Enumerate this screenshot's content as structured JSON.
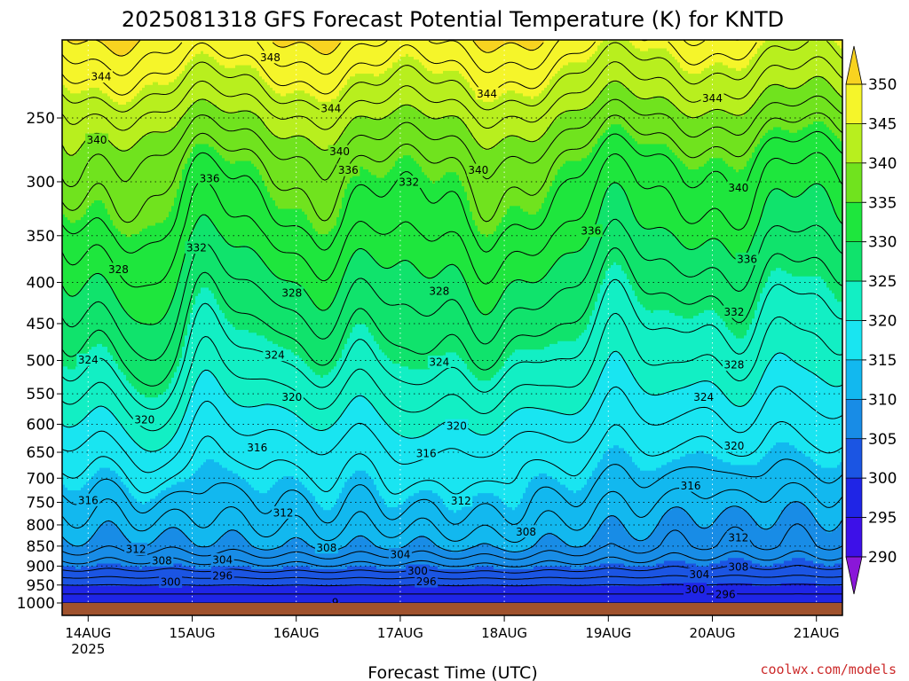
{
  "chart_data": {
    "type": "heatmap",
    "title": "2025081318 GFS Forecast Potential Temperature (K) for KNTD",
    "xlabel": "Forecast Time (UTC)",
    "ylabel": "",
    "credit": "coolwx.com/models",
    "x_ticks": [
      {
        "label": "14AUG",
        "sub": "2025",
        "hours": 6
      },
      {
        "label": "15AUG",
        "sub": "",
        "hours": 30
      },
      {
        "label": "16AUG",
        "sub": "",
        "hours": 54
      },
      {
        "label": "17AUG",
        "sub": "",
        "hours": 78
      },
      {
        "label": "18AUG",
        "sub": "",
        "hours": 102
      },
      {
        "label": "19AUG",
        "sub": "",
        "hours": 126
      },
      {
        "label": "20AUG",
        "sub": "",
        "hours": 150
      },
      {
        "label": "21AUG",
        "sub": "",
        "hours": 174
      }
    ],
    "xlim_hours": [
      0,
      180
    ],
    "y_ticks": [
      250,
      300,
      350,
      400,
      450,
      500,
      550,
      600,
      650,
      700,
      750,
      800,
      850,
      900,
      950,
      1000
    ],
    "ylim_hPa": [
      1000,
      200
    ],
    "colorbar": {
      "levels": [
        290,
        295,
        300,
        305,
        310,
        315,
        320,
        325,
        330,
        335,
        340,
        345,
        350
      ],
      "labels": [
        "350",
        "345",
        "340",
        "335",
        "330",
        "325",
        "320",
        "315",
        "310",
        "305",
        "300",
        "295",
        "290"
      ],
      "colors": [
        "#8a17d8",
        "#3d10e8",
        "#1f25e6",
        "#1b55e3",
        "#188ce6",
        "#12b8ef",
        "#19e5f1",
        "#12efc4",
        "#10e36c",
        "#1ee63d",
        "#70e31e",
        "#b8ef1e",
        "#f5f52a",
        "#f8d320"
      ]
    },
    "contour_labels": [
      {
        "text": "348",
        "h": 48,
        "p": 210
      },
      {
        "text": "344",
        "h": 9,
        "p": 222
      },
      {
        "text": "344",
        "h": 62,
        "p": 243
      },
      {
        "text": "344",
        "h": 98,
        "p": 233
      },
      {
        "text": "344",
        "h": 150,
        "p": 236
      },
      {
        "text": "340",
        "h": 8,
        "p": 266
      },
      {
        "text": "340",
        "h": 64,
        "p": 275
      },
      {
        "text": "340",
        "h": 96,
        "p": 290
      },
      {
        "text": "340",
        "h": 156,
        "p": 305
      },
      {
        "text": "336",
        "h": 34,
        "p": 297
      },
      {
        "text": "336",
        "h": 66,
        "p": 290
      },
      {
        "text": "336",
        "h": 122,
        "p": 345
      },
      {
        "text": "336",
        "h": 158,
        "p": 374
      },
      {
        "text": "332",
        "h": 31,
        "p": 362
      },
      {
        "text": "332",
        "h": 80,
        "p": 300
      },
      {
        "text": "332",
        "h": 155,
        "p": 435
      },
      {
        "text": "328",
        "h": 13,
        "p": 385
      },
      {
        "text": "328",
        "h": 53,
        "p": 412
      },
      {
        "text": "328",
        "h": 87,
        "p": 410
      },
      {
        "text": "328",
        "h": 155,
        "p": 506
      },
      {
        "text": "324",
        "h": 6,
        "p": 499
      },
      {
        "text": "324",
        "h": 49,
        "p": 492
      },
      {
        "text": "324",
        "h": 87,
        "p": 502
      },
      {
        "text": "324",
        "h": 148,
        "p": 555
      },
      {
        "text": "320",
        "h": 19,
        "p": 592
      },
      {
        "text": "320",
        "h": 53,
        "p": 555
      },
      {
        "text": "320",
        "h": 91,
        "p": 602
      },
      {
        "text": "320",
        "h": 155,
        "p": 638
      },
      {
        "text": "316",
        "h": 6,
        "p": 745
      },
      {
        "text": "316",
        "h": 45,
        "p": 641
      },
      {
        "text": "316",
        "h": 84,
        "p": 652
      },
      {
        "text": "316",
        "h": 145,
        "p": 715
      },
      {
        "text": "312",
        "h": 17,
        "p": 857
      },
      {
        "text": "312",
        "h": 51,
        "p": 772
      },
      {
        "text": "312",
        "h": 92,
        "p": 746
      },
      {
        "text": "312",
        "h": 156,
        "p": 829
      },
      {
        "text": "308",
        "h": 23,
        "p": 885
      },
      {
        "text": "308",
        "h": 61,
        "p": 853
      },
      {
        "text": "308",
        "h": 107,
        "p": 815
      },
      {
        "text": "308",
        "h": 156,
        "p": 901
      },
      {
        "text": "304",
        "h": 37,
        "p": 883
      },
      {
        "text": "304",
        "h": 78,
        "p": 870
      },
      {
        "text": "304",
        "h": 147,
        "p": 921
      },
      {
        "text": "300",
        "h": 25,
        "p": 941
      },
      {
        "text": "300",
        "h": 82,
        "p": 912
      },
      {
        "text": "300",
        "h": 146,
        "p": 961
      },
      {
        "text": "296",
        "h": 37,
        "p": 925
      },
      {
        "text": "296",
        "h": 84,
        "p": 940
      },
      {
        "text": "296",
        "h": 153,
        "p": 975
      },
      {
        "text": "9",
        "h": 63,
        "p": 997
      }
    ],
    "contour_levels": [
      290,
      292,
      294,
      296,
      298,
      300,
      302,
      304,
      306,
      308,
      310,
      312,
      314,
      316,
      318,
      320,
      322,
      324,
      326,
      328,
      330,
      332,
      334,
      336,
      338,
      340,
      342,
      344,
      346,
      348,
      350
    ],
    "grid": "dotted",
    "ground_color": "#a0522d"
  }
}
